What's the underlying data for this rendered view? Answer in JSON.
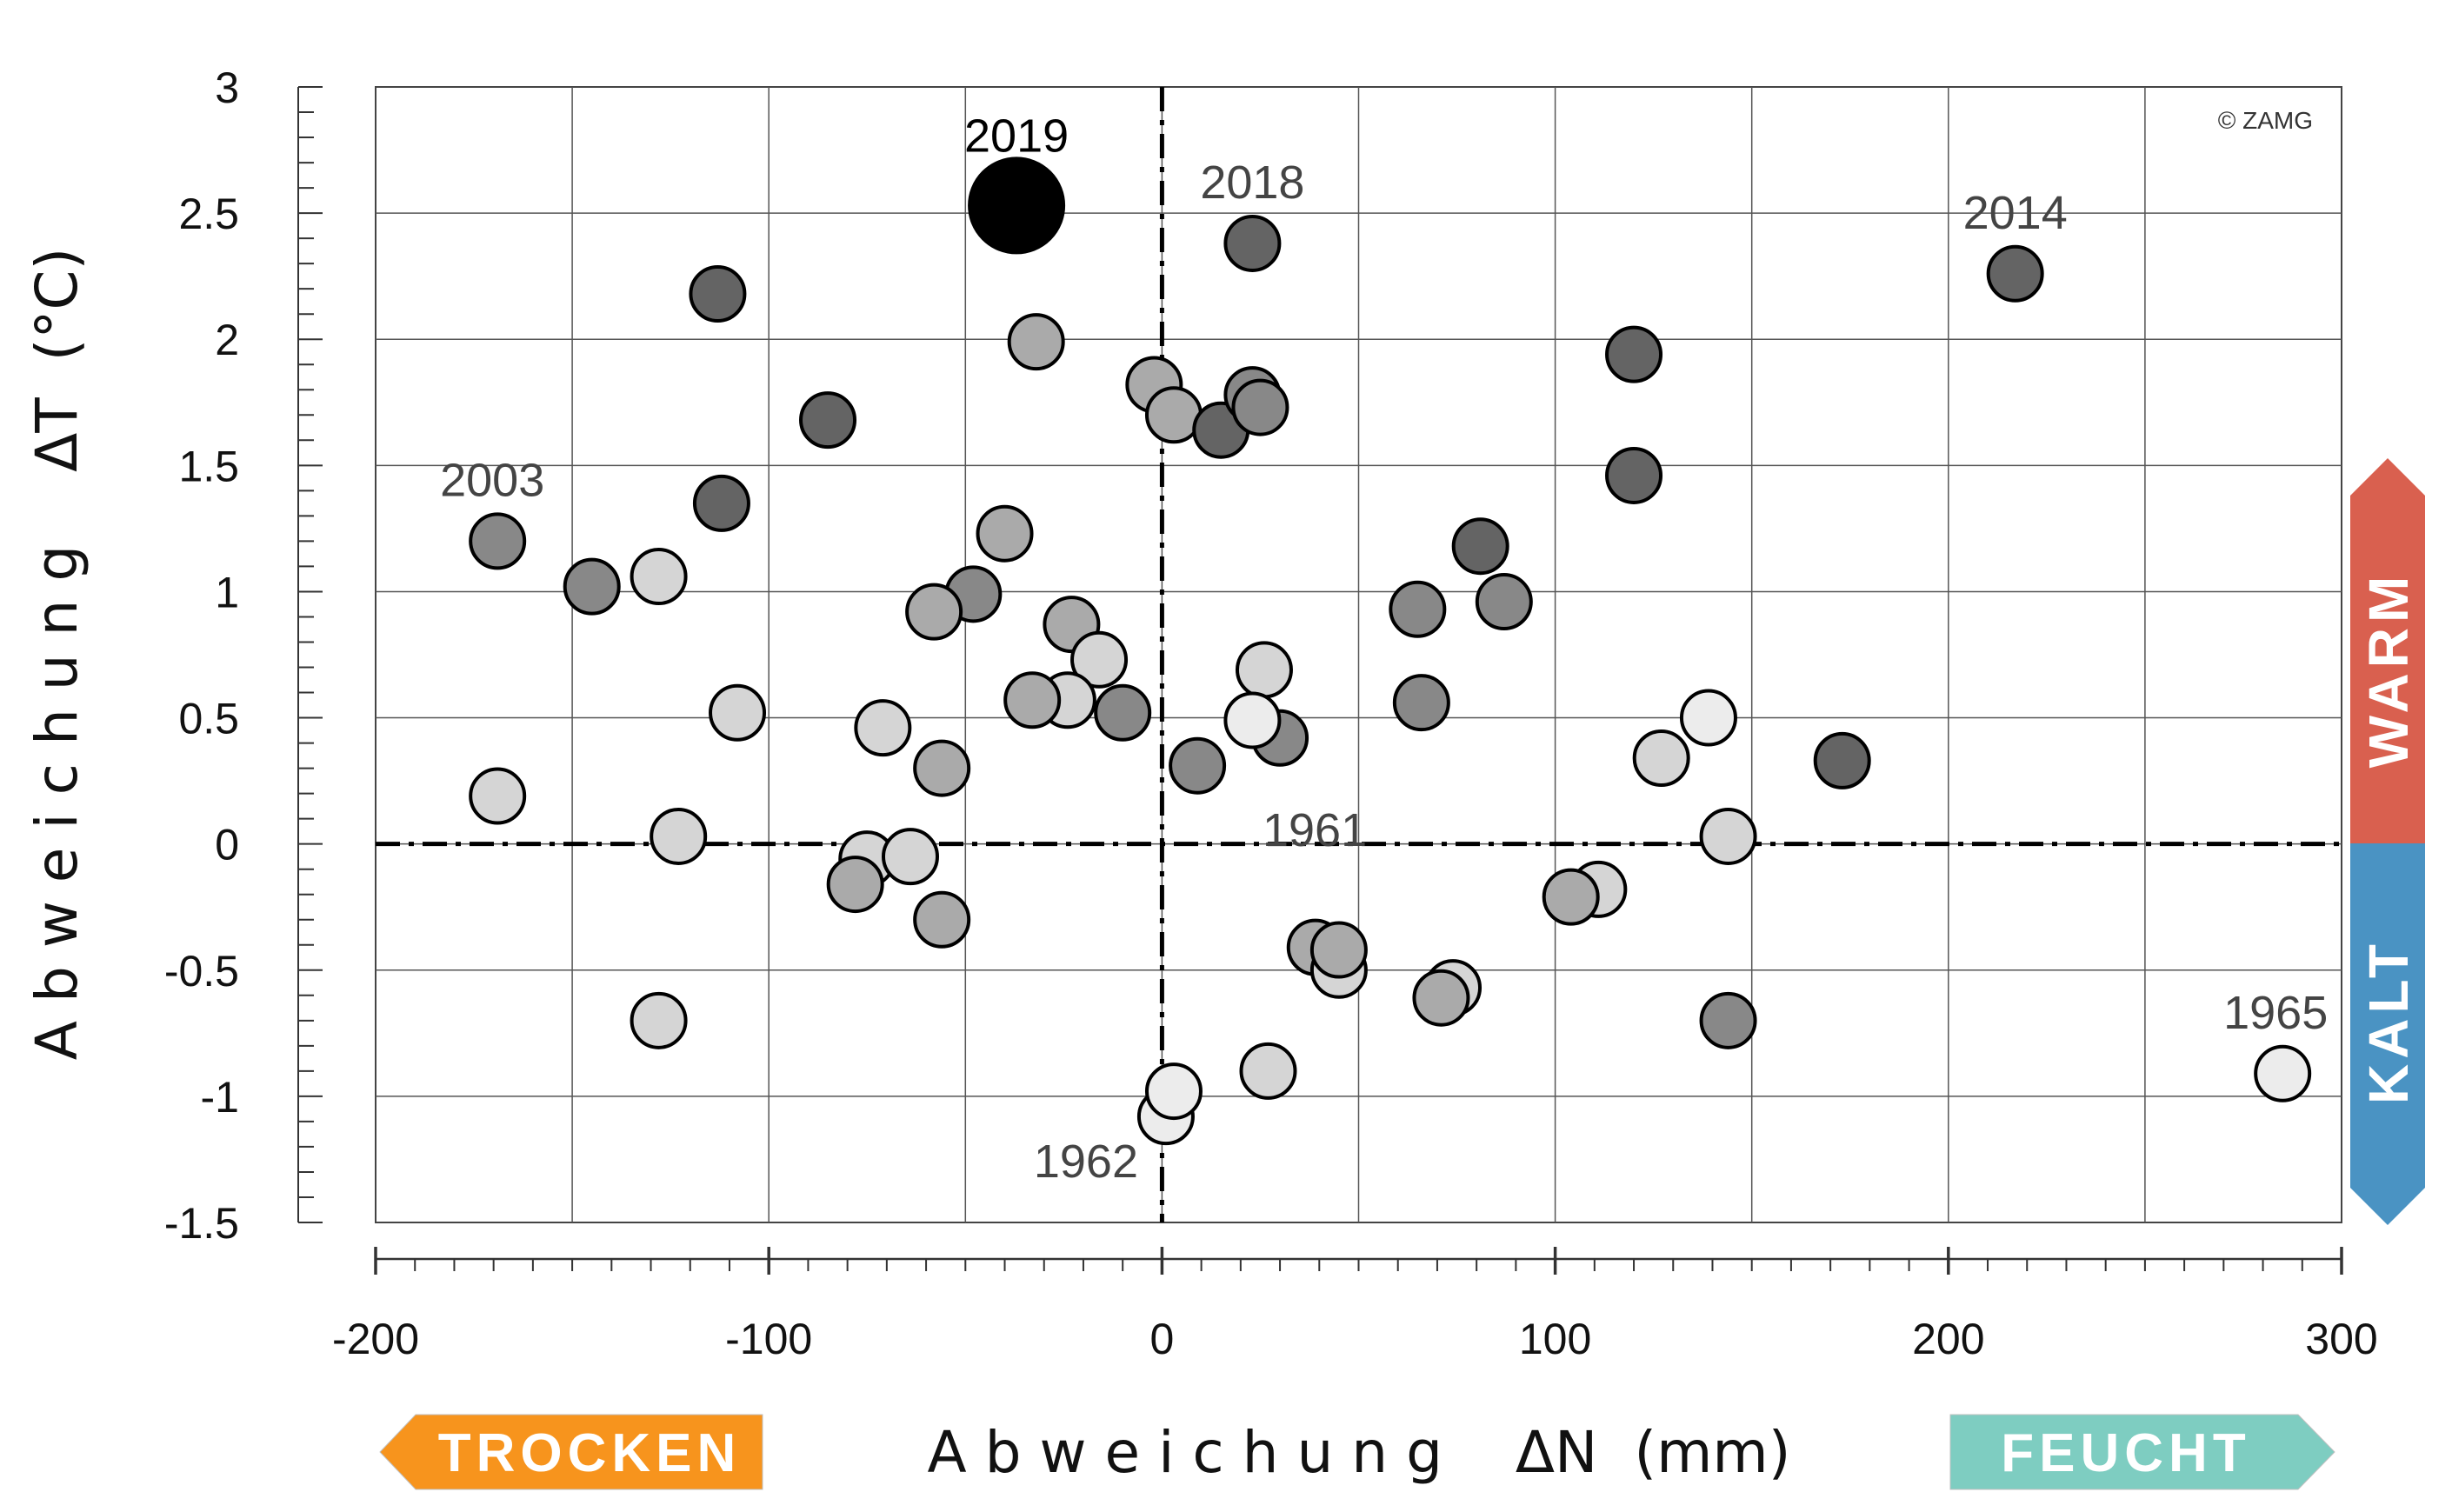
{
  "chart_data": {
    "type": "scatter",
    "xlabel": "A b w e i c h u n g    ΔN  (mm)",
    "ylabel": "A b w e i c h u n g    ΔT  (°C)",
    "xlim": [
      -200,
      300
    ],
    "ylim": [
      -1.5,
      3
    ],
    "x_ticks": [
      "-200",
      "-100",
      "0",
      "100",
      "200",
      "300"
    ],
    "y_ticks": [
      "3",
      "2.5",
      "2",
      "1.5",
      "1",
      "0.5",
      "0",
      "-0.5",
      "-1",
      "-1.5"
    ],
    "grid": true,
    "reference_lines": {
      "x": 0,
      "y": 0
    },
    "credit": "© ZAMG",
    "quadrant_tags": {
      "dry": "TROCKEN",
      "wet": "FEUCHT",
      "warm": "WARM",
      "cold": "KALT"
    },
    "tag_colors": {
      "dry": "#F7941D",
      "wet": "#7ECDC1",
      "warm": "#D9604F",
      "cold": "#4A93C3"
    },
    "shade_colors": [
      "#ECECEC",
      "#D5D5D5",
      "#AAAAAA",
      "#888888",
      "#646464",
      "#000000"
    ],
    "points": [
      {
        "x": -37,
        "y": 2.53,
        "shade": 5,
        "label": "2019",
        "main": true
      },
      {
        "x": 23,
        "y": 2.38,
        "shade": 4,
        "label": "2018"
      },
      {
        "x": 217,
        "y": 2.26,
        "shade": 4,
        "label": "2014"
      },
      {
        "x": -169,
        "y": 1.2,
        "shade": 3,
        "label": "2003"
      },
      {
        "x": 285,
        "y": -0.91,
        "shade": 0,
        "label": "1965"
      },
      {
        "x": 1,
        "y": -1.08,
        "shade": 0,
        "label": "1962"
      },
      {
        "x": 30,
        "y": 0.42,
        "shade": 3,
        "label": "1961"
      },
      {
        "x": -113,
        "y": 2.18,
        "shade": 4
      },
      {
        "x": -32,
        "y": 1.99,
        "shade": 2
      },
      {
        "x": -85,
        "y": 1.68,
        "shade": 4
      },
      {
        "x": -112,
        "y": 1.35,
        "shade": 4
      },
      {
        "x": -145,
        "y": 1.02,
        "shade": 3
      },
      {
        "x": -128,
        "y": 1.06,
        "shade": 1
      },
      {
        "x": -40,
        "y": 1.23,
        "shade": 2
      },
      {
        "x": -48,
        "y": 0.99,
        "shade": 3
      },
      {
        "x": -58,
        "y": 0.92,
        "shade": 2
      },
      {
        "x": -23,
        "y": 0.87,
        "shade": 2
      },
      {
        "x": -16,
        "y": 0.73,
        "shade": 1
      },
      {
        "x": -24,
        "y": 0.57,
        "shade": 1
      },
      {
        "x": -33,
        "y": 0.57,
        "shade": 2
      },
      {
        "x": -10,
        "y": 0.52,
        "shade": 3
      },
      {
        "x": -108,
        "y": 0.52,
        "shade": 1
      },
      {
        "x": -71,
        "y": 0.46,
        "shade": 1
      },
      {
        "x": -56,
        "y": 0.3,
        "shade": 2
      },
      {
        "x": -169,
        "y": 0.19,
        "shade": 1
      },
      {
        "x": -123,
        "y": 0.03,
        "shade": 1
      },
      {
        "x": -75,
        "y": -0.06,
        "shade": 1
      },
      {
        "x": -64,
        "y": -0.05,
        "shade": 1
      },
      {
        "x": -78,
        "y": -0.16,
        "shade": 2
      },
      {
        "x": -56,
        "y": -0.3,
        "shade": 2
      },
      {
        "x": -128,
        "y": -0.7,
        "shade": 1
      },
      {
        "x": -2,
        "y": 1.82,
        "shade": 2
      },
      {
        "x": 3,
        "y": 1.7,
        "shade": 2
      },
      {
        "x": 15,
        "y": 1.64,
        "shade": 4
      },
      {
        "x": 23,
        "y": 1.78,
        "shade": 3
      },
      {
        "x": 25,
        "y": 1.73,
        "shade": 3
      },
      {
        "x": 26,
        "y": 0.69,
        "shade": 1
      },
      {
        "x": 23,
        "y": 0.49,
        "shade": 0
      },
      {
        "x": 9,
        "y": 0.31,
        "shade": 3
      },
      {
        "x": 3,
        "y": -0.98,
        "shade": 0
      },
      {
        "x": 27,
        "y": -0.9,
        "shade": 1
      },
      {
        "x": 39,
        "y": -0.41,
        "shade": 2
      },
      {
        "x": 45,
        "y": -0.5,
        "shade": 1
      },
      {
        "x": 45,
        "y": -0.42,
        "shade": 2
      },
      {
        "x": 65,
        "y": 0.93,
        "shade": 3
      },
      {
        "x": 66,
        "y": 0.56,
        "shade": 3
      },
      {
        "x": 81,
        "y": 1.18,
        "shade": 4
      },
      {
        "x": 87,
        "y": 0.96,
        "shade": 3
      },
      {
        "x": 74,
        "y": -0.57,
        "shade": 1
      },
      {
        "x": 71,
        "y": -0.61,
        "shade": 2
      },
      {
        "x": 120,
        "y": 1.94,
        "shade": 4
      },
      {
        "x": 120,
        "y": 1.46,
        "shade": 4
      },
      {
        "x": 139,
        "y": 0.5,
        "shade": 0
      },
      {
        "x": 127,
        "y": 0.34,
        "shade": 1
      },
      {
        "x": 144,
        "y": 0.03,
        "shade": 1
      },
      {
        "x": 111,
        "y": -0.18,
        "shade": 1
      },
      {
        "x": 104,
        "y": -0.21,
        "shade": 2
      },
      {
        "x": 144,
        "y": -0.7,
        "shade": 3
      },
      {
        "x": 173,
        "y": 0.33,
        "shade": 4
      }
    ]
  }
}
